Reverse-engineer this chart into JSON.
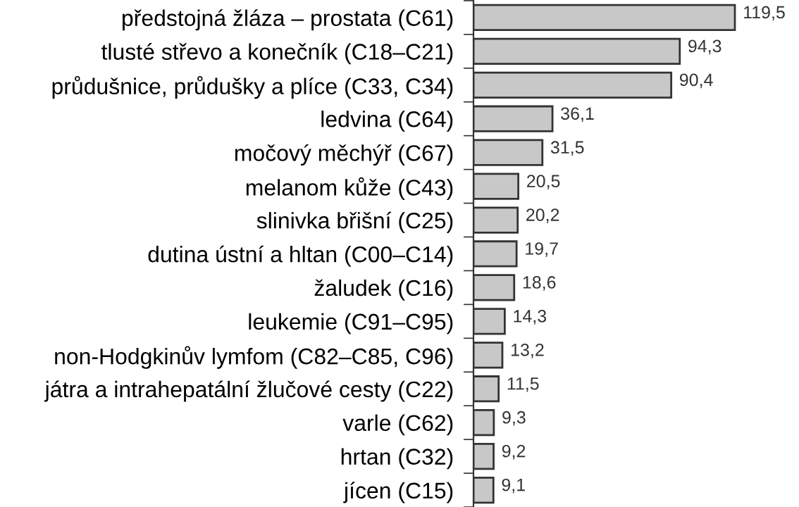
{
  "chart_data": {
    "type": "bar",
    "orientation": "horizontal",
    "categories": [
      "předstojná žláza – prostata (C61)",
      "tlusté střevo a konečník (C18–C21)",
      "průdušnice, průdušky a plíce (C33, C34)",
      "ledvina (C64)",
      "močový měchýř (C67)",
      "melanom kůže (C43)",
      "slinivka břišní (C25)",
      "dutina ústní a hltan (C00–C14)",
      "žaludek (C16)",
      "leukemie (C91–C95)",
      "non-Hodgkinův lymfom (C82–C85, C96)",
      "játra a intrahepatální žlučové cesty (C22)",
      "varle (C62)",
      "hrtan (C32)",
      "jícen (C15)"
    ],
    "values": [
      119.5,
      94.3,
      90.4,
      36.1,
      31.5,
      20.5,
      20.2,
      19.7,
      18.6,
      14.3,
      13.2,
      11.5,
      9.3,
      9.2,
      9.1
    ],
    "value_labels": [
      "119,5",
      "94,3",
      "90,4",
      "36,1",
      "31,5",
      "20,5",
      "20,2",
      "19,7",
      "18,6",
      "14,3",
      "13,2",
      "11,5",
      "9,3",
      "9,2",
      "9,1"
    ],
    "color": "#c8c8c8"
  }
}
